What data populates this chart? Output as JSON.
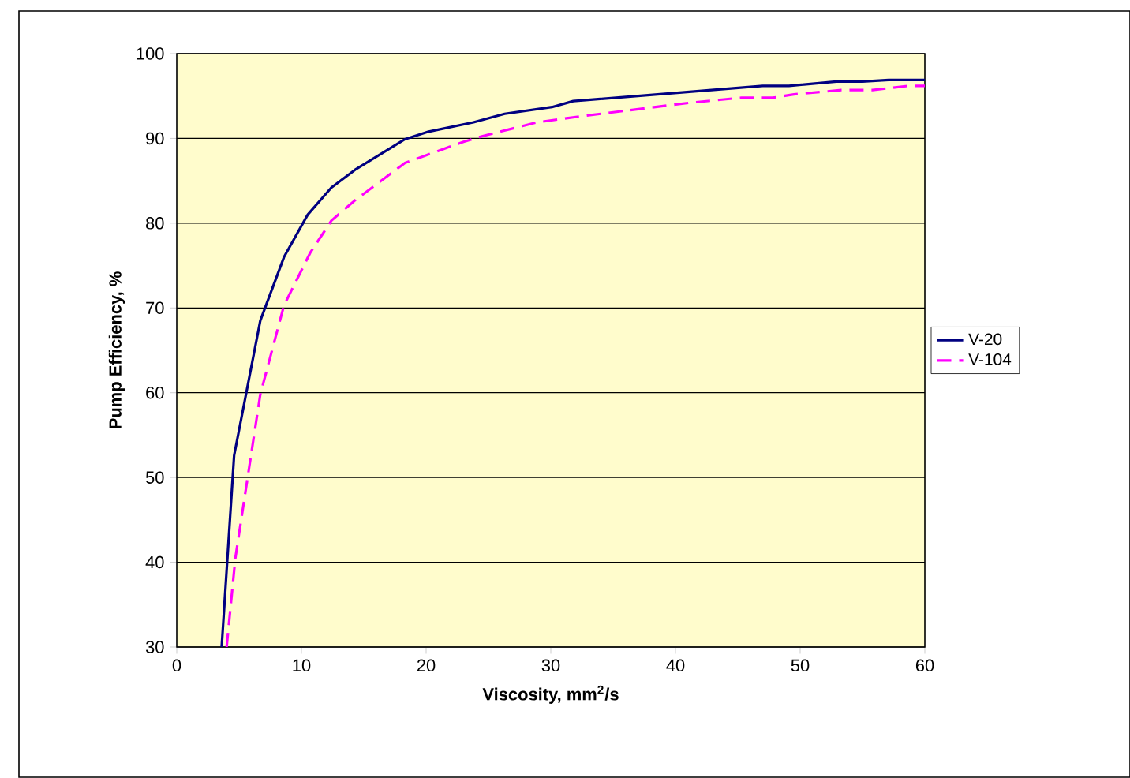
{
  "chart_data": {
    "type": "line",
    "xlabel": "Viscosity, mm$^{2}$/s",
    "ylabel": "Pump Efficiency, %",
    "xlim": [
      0,
      60
    ],
    "xticks": [
      0,
      10,
      20,
      30,
      40,
      50,
      60
    ],
    "ylim": [
      30,
      100
    ],
    "yticks": [
      30,
      40,
      50,
      60,
      70,
      80,
      90,
      100
    ],
    "grid": "y",
    "legend": "right",
    "series": [
      {
        "name": "V-20",
        "color": "#000080",
        "line_style": "solid",
        "x": [
          3.6,
          4.6,
          6.7,
          8.6,
          10.5,
          12.4,
          14.3,
          18.3,
          20.2,
          23.8,
          26.3,
          30.1,
          31.8,
          47,
          49.1,
          52.9,
          55,
          57.1,
          58.7,
          60
        ],
        "values": [
          30,
          52.6,
          68.5,
          76,
          81,
          84.2,
          86.3,
          89.9,
          90.8,
          91.9,
          92.9,
          93.7,
          94.4,
          96.2,
          96.2,
          96.7,
          96.7,
          96.9,
          96.9,
          96.9
        ]
      },
      {
        "name": "V-104",
        "color": "#ff00ff",
        "line_style": "dashed",
        "x": [
          4.0,
          4.7,
          6.7,
          8.6,
          10.7,
          12.4,
          14.3,
          18.3,
          23,
          24.6,
          28.9,
          32.9,
          41.1,
          45.3,
          47.8,
          49.5,
          53.3,
          55.8,
          58.7,
          60
        ],
        "values": [
          30,
          40.5,
          59.8,
          70.3,
          76.5,
          80.3,
          82.7,
          87.1,
          89.6,
          90.3,
          91.9,
          92.7,
          94.2,
          94.8,
          94.8,
          95.2,
          95.7,
          95.7,
          96.2,
          96.2
        ]
      }
    ]
  }
}
